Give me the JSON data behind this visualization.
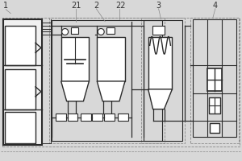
{
  "bg_color": "#f0f0f0",
  "line_color": "#2a2a2a",
  "dashed_color": "#888888",
  "label_color": "#333333",
  "fig_bg": "#d8d8d8",
  "white": "#ffffff"
}
